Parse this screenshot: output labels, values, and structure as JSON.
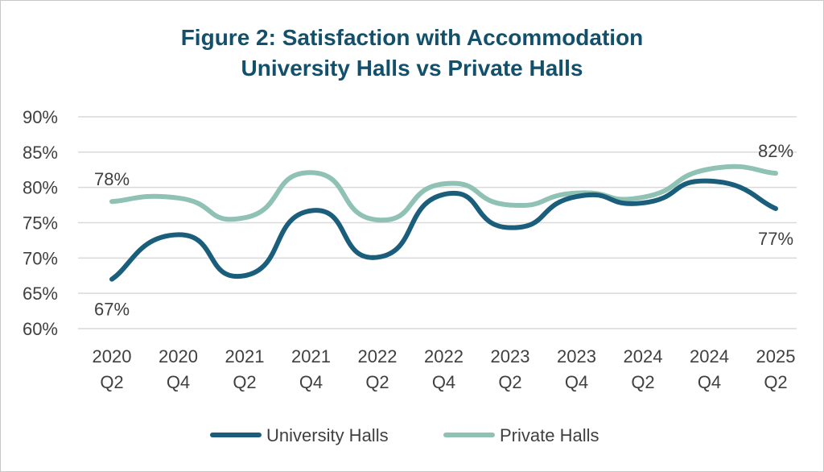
{
  "chart_data": {
    "type": "line",
    "title_line1": "Figure 2: Satisfaction with Accommodation",
    "title_line2": "University Halls vs Private Halls",
    "categories": [
      [
        "2020",
        "Q2"
      ],
      [
        "2020",
        "Q4"
      ],
      [
        "2021",
        "Q2"
      ],
      [
        "2021",
        "Q4"
      ],
      [
        "2022",
        "Q2"
      ],
      [
        "2022",
        "Q4"
      ],
      [
        "2023",
        "Q2"
      ],
      [
        "2023",
        "Q4"
      ],
      [
        "2024",
        "Q2"
      ],
      [
        "2024",
        "Q4"
      ],
      [
        "2025",
        "Q2"
      ]
    ],
    "y_ticks": [
      "60%",
      "65%",
      "70%",
      "75%",
      "80%",
      "85%",
      "90%"
    ],
    "ylim": [
      60,
      90
    ],
    "series": [
      {
        "name": "University Halls",
        "color": "#1b5e7b",
        "values": [
          67,
          73.3,
          67.5,
          76.7,
          70.1,
          79,
          74.3,
          78.7,
          77.8,
          80.9,
          77
        ]
      },
      {
        "name": "Private Halls",
        "color": "#8fc1b5",
        "values": [
          78,
          78.5,
          75.7,
          82.1,
          75.4,
          80.5,
          77.5,
          79.2,
          78.6,
          82.6,
          82
        ]
      }
    ],
    "data_labels": [
      {
        "series": 0,
        "index": 0,
        "text": "67%"
      },
      {
        "series": 0,
        "index": 10,
        "text": "77%"
      },
      {
        "series": 1,
        "index": 0,
        "text": "78%"
      },
      {
        "series": 1,
        "index": 10,
        "text": "82%"
      }
    ],
    "grid": true,
    "legend": "bottom"
  }
}
